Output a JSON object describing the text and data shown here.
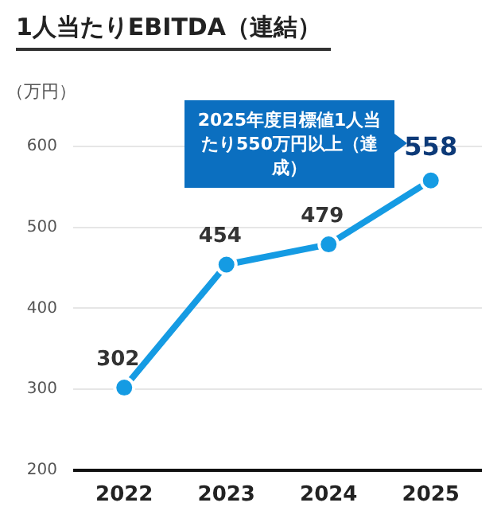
{
  "chart_data": {
    "type": "line",
    "title": "1人当たりEBITDA（連結）",
    "ylabel": "（万円）",
    "categories": [
      "2022",
      "2023",
      "2024",
      "2025"
    ],
    "series": [
      {
        "color": "#159be3",
        "values": [
          302,
          454,
          479,
          558
        ]
      }
    ],
    "ylim": [
      200,
      600
    ],
    "yticks": [
      200,
      300,
      400,
      500,
      600
    ],
    "grid": "y",
    "legend": false,
    "marker": "circle",
    "line_style": "solid",
    "data_labels": true,
    "annotations": [
      "2025年度目標値1人当たり550万円以上（達成）"
    ]
  }
}
